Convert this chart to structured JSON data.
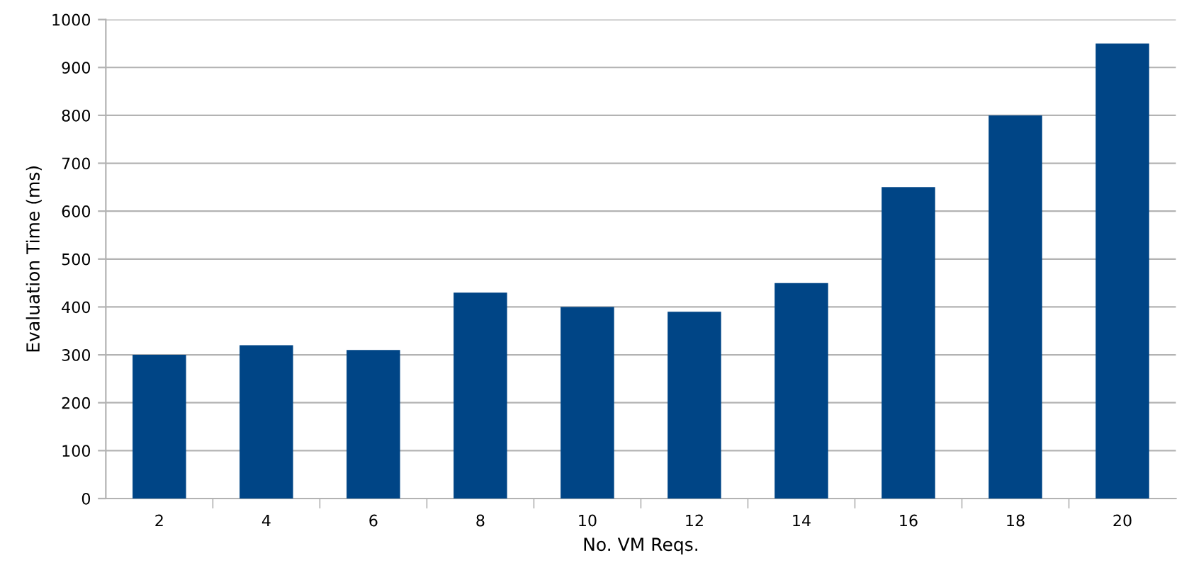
{
  "chart_data": {
    "type": "bar",
    "xlabel": "No. VM Reqs.",
    "ylabel": "Evaluation Time (ms)",
    "categories": [
      "2",
      "4",
      "6",
      "8",
      "10",
      "12",
      "14",
      "16",
      "18",
      "20"
    ],
    "values": [
      300,
      320,
      310,
      430,
      400,
      390,
      450,
      650,
      800,
      950
    ],
    "color": "#004586",
    "ylim": [
      0,
      1000
    ],
    "yticks": [
      0,
      100,
      200,
      300,
      400,
      500,
      600,
      700,
      800,
      900,
      1000
    ],
    "grid": "y"
  }
}
